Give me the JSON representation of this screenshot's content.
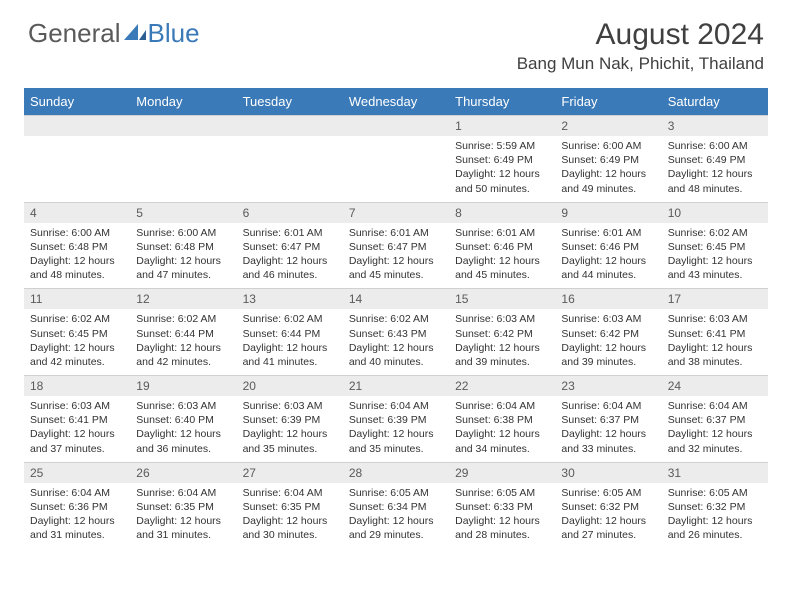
{
  "logo": {
    "text1": "General",
    "text2": "Blue"
  },
  "title": "August 2024",
  "location": "Bang Mun Nak, Phichit, Thailand",
  "colors": {
    "header_bg": "#3a7ab8",
    "header_text": "#ffffff",
    "daynum_bg": "#ececec",
    "daynum_text": "#5a5a5a",
    "body_text": "#333333",
    "logo_gray": "#5a5a5a",
    "logo_blue": "#3a7ab8"
  },
  "weekdays": [
    "Sunday",
    "Monday",
    "Tuesday",
    "Wednesday",
    "Thursday",
    "Friday",
    "Saturday"
  ],
  "weeks": [
    [
      null,
      null,
      null,
      null,
      {
        "n": "1",
        "sr": "5:59 AM",
        "ss": "6:49 PM",
        "dl": "12 hours and 50 minutes."
      },
      {
        "n": "2",
        "sr": "6:00 AM",
        "ss": "6:49 PM",
        "dl": "12 hours and 49 minutes."
      },
      {
        "n": "3",
        "sr": "6:00 AM",
        "ss": "6:49 PM",
        "dl": "12 hours and 48 minutes."
      }
    ],
    [
      {
        "n": "4",
        "sr": "6:00 AM",
        "ss": "6:48 PM",
        "dl": "12 hours and 48 minutes."
      },
      {
        "n": "5",
        "sr": "6:00 AM",
        "ss": "6:48 PM",
        "dl": "12 hours and 47 minutes."
      },
      {
        "n": "6",
        "sr": "6:01 AM",
        "ss": "6:47 PM",
        "dl": "12 hours and 46 minutes."
      },
      {
        "n": "7",
        "sr": "6:01 AM",
        "ss": "6:47 PM",
        "dl": "12 hours and 45 minutes."
      },
      {
        "n": "8",
        "sr": "6:01 AM",
        "ss": "6:46 PM",
        "dl": "12 hours and 45 minutes."
      },
      {
        "n": "9",
        "sr": "6:01 AM",
        "ss": "6:46 PM",
        "dl": "12 hours and 44 minutes."
      },
      {
        "n": "10",
        "sr": "6:02 AM",
        "ss": "6:45 PM",
        "dl": "12 hours and 43 minutes."
      }
    ],
    [
      {
        "n": "11",
        "sr": "6:02 AM",
        "ss": "6:45 PM",
        "dl": "12 hours and 42 minutes."
      },
      {
        "n": "12",
        "sr": "6:02 AM",
        "ss": "6:44 PM",
        "dl": "12 hours and 42 minutes."
      },
      {
        "n": "13",
        "sr": "6:02 AM",
        "ss": "6:44 PM",
        "dl": "12 hours and 41 minutes."
      },
      {
        "n": "14",
        "sr": "6:02 AM",
        "ss": "6:43 PM",
        "dl": "12 hours and 40 minutes."
      },
      {
        "n": "15",
        "sr": "6:03 AM",
        "ss": "6:42 PM",
        "dl": "12 hours and 39 minutes."
      },
      {
        "n": "16",
        "sr": "6:03 AM",
        "ss": "6:42 PM",
        "dl": "12 hours and 39 minutes."
      },
      {
        "n": "17",
        "sr": "6:03 AM",
        "ss": "6:41 PM",
        "dl": "12 hours and 38 minutes."
      }
    ],
    [
      {
        "n": "18",
        "sr": "6:03 AM",
        "ss": "6:41 PM",
        "dl": "12 hours and 37 minutes."
      },
      {
        "n": "19",
        "sr": "6:03 AM",
        "ss": "6:40 PM",
        "dl": "12 hours and 36 minutes."
      },
      {
        "n": "20",
        "sr": "6:03 AM",
        "ss": "6:39 PM",
        "dl": "12 hours and 35 minutes."
      },
      {
        "n": "21",
        "sr": "6:04 AM",
        "ss": "6:39 PM",
        "dl": "12 hours and 35 minutes."
      },
      {
        "n": "22",
        "sr": "6:04 AM",
        "ss": "6:38 PM",
        "dl": "12 hours and 34 minutes."
      },
      {
        "n": "23",
        "sr": "6:04 AM",
        "ss": "6:37 PM",
        "dl": "12 hours and 33 minutes."
      },
      {
        "n": "24",
        "sr": "6:04 AM",
        "ss": "6:37 PM",
        "dl": "12 hours and 32 minutes."
      }
    ],
    [
      {
        "n": "25",
        "sr": "6:04 AM",
        "ss": "6:36 PM",
        "dl": "12 hours and 31 minutes."
      },
      {
        "n": "26",
        "sr": "6:04 AM",
        "ss": "6:35 PM",
        "dl": "12 hours and 31 minutes."
      },
      {
        "n": "27",
        "sr": "6:04 AM",
        "ss": "6:35 PM",
        "dl": "12 hours and 30 minutes."
      },
      {
        "n": "28",
        "sr": "6:05 AM",
        "ss": "6:34 PM",
        "dl": "12 hours and 29 minutes."
      },
      {
        "n": "29",
        "sr": "6:05 AM",
        "ss": "6:33 PM",
        "dl": "12 hours and 28 minutes."
      },
      {
        "n": "30",
        "sr": "6:05 AM",
        "ss": "6:32 PM",
        "dl": "12 hours and 27 minutes."
      },
      {
        "n": "31",
        "sr": "6:05 AM",
        "ss": "6:32 PM",
        "dl": "12 hours and 26 minutes."
      }
    ]
  ],
  "labels": {
    "sunrise": "Sunrise:",
    "sunset": "Sunset:",
    "daylight": "Daylight:"
  }
}
